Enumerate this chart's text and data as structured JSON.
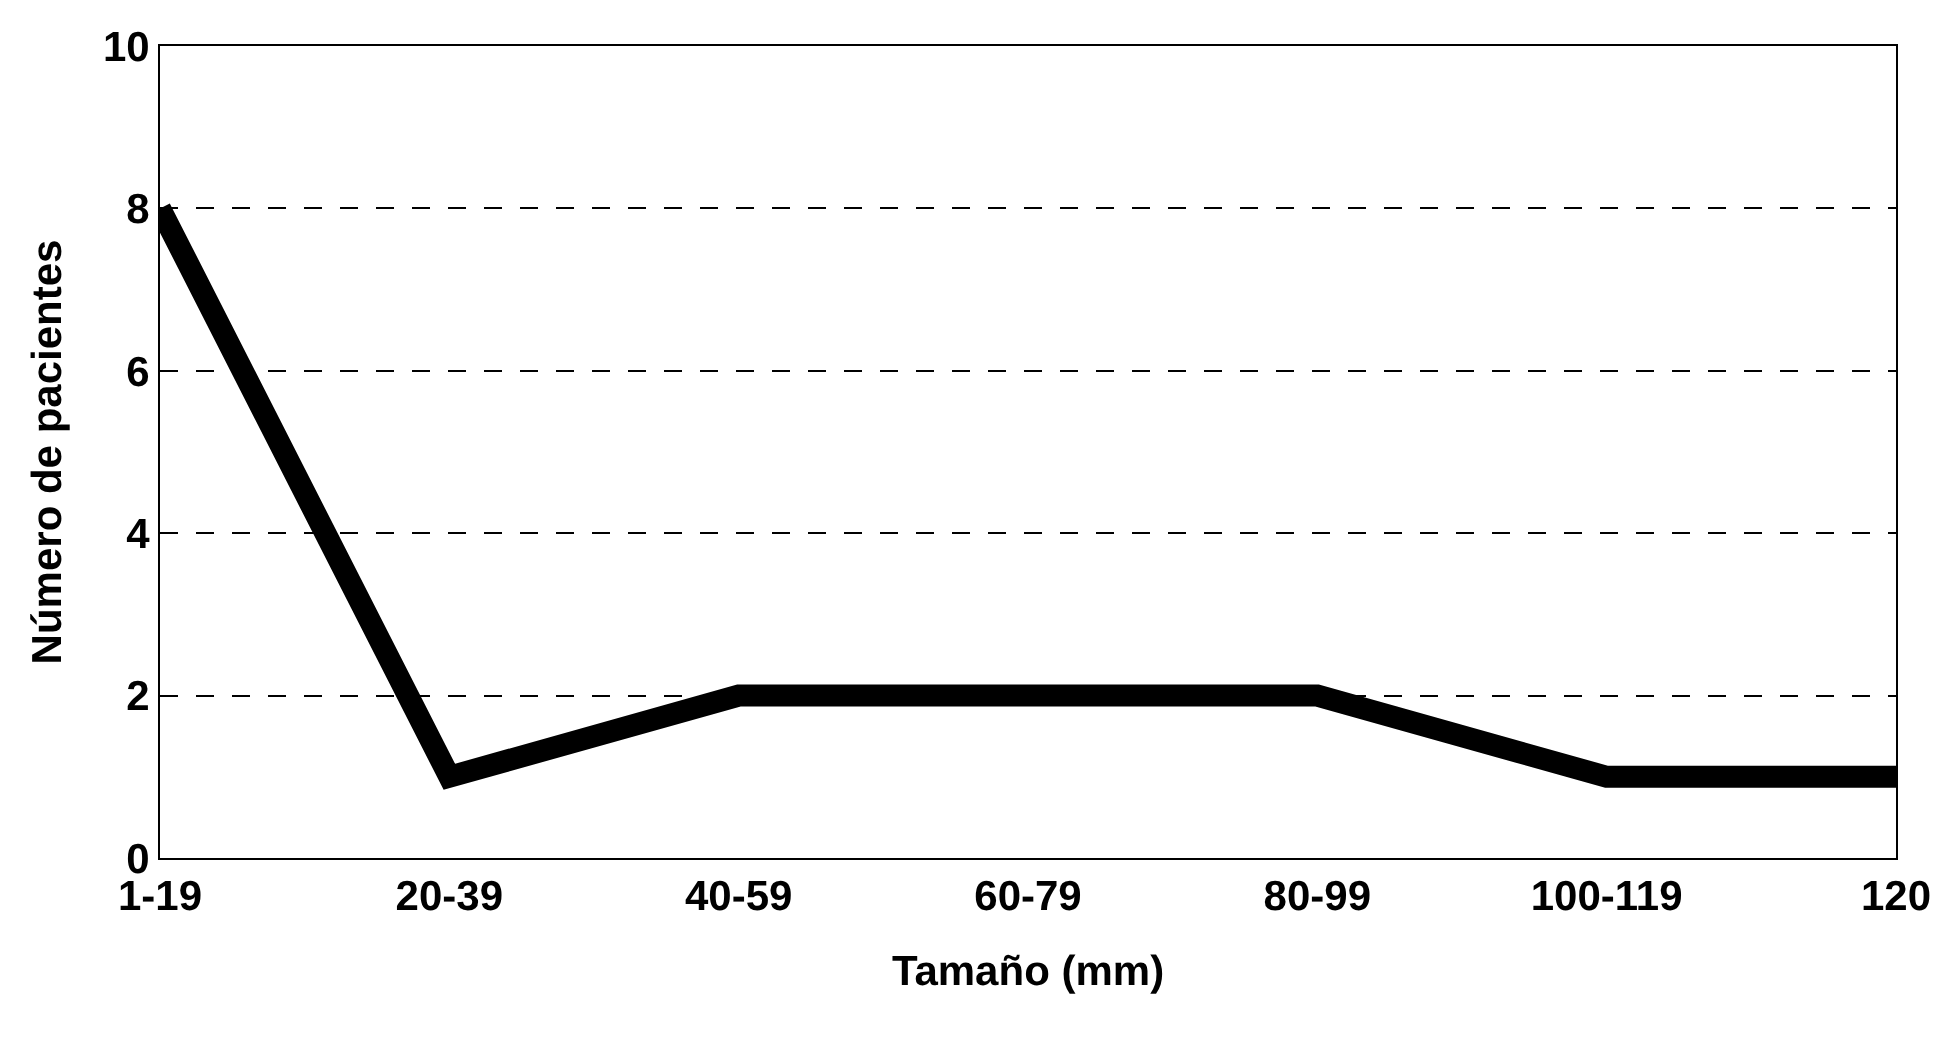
{
  "chart_data": {
    "type": "line",
    "xlabel": "Tamaño (mm)",
    "ylabel": "Número de pacientes",
    "categories": [
      "1-19",
      "20-39",
      "40-59",
      "60-79",
      "80-99",
      "100-119",
      "120"
    ],
    "series": [
      {
        "color": "#000000",
        "values": [
          8,
          1,
          2,
          2,
          2,
          1,
          1
        ]
      }
    ],
    "ylim": [
      0,
      10
    ],
    "yticks": [
      0,
      2,
      4,
      6,
      8,
      10
    ],
    "grid": "y",
    "line_style": "solid",
    "marker": "none"
  }
}
